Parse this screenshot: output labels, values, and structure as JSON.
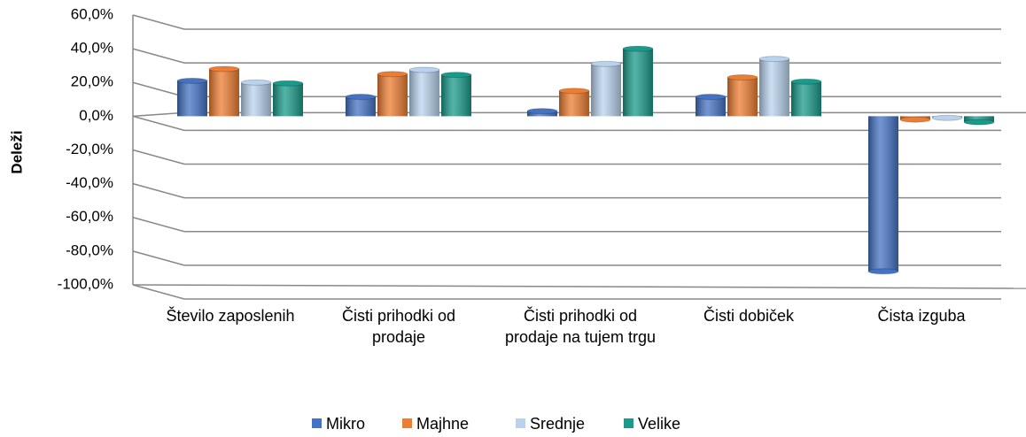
{
  "chart_data": {
    "type": "bar3d",
    "y_label": "Deleži",
    "categories": [
      "Število zaposlenih",
      "Čisti prihodki od prodaje",
      "Čisti prihodki od prodaje na tujem trgu",
      "Čisti dobiček",
      "Čista izguba"
    ],
    "series": [
      {
        "name": "Mikro",
        "color": "#4472c4",
        "values": [
          21,
          11.5,
          3,
          11.5,
          -92
        ]
      },
      {
        "name": "Majhne",
        "color": "#ed7d31",
        "values": [
          28,
          25,
          15,
          23,
          -2
        ]
      },
      {
        "name": "Srednje",
        "color": "#b9d3ee",
        "values": [
          20,
          27.5,
          31,
          34,
          -1
        ]
      },
      {
        "name": "Velike",
        "color": "#1a9a8a",
        "values": [
          19.5,
          24.5,
          40,
          20.5,
          -3.5
        ]
      }
    ],
    "ylim": [
      -100,
      60
    ],
    "yticks": [
      {
        "value": -100,
        "label": "-100,0%"
      },
      {
        "value": -80,
        "label": "-80,0%"
      },
      {
        "value": -60,
        "label": "-60,0%"
      },
      {
        "value": -40,
        "label": "-40,0%"
      },
      {
        "value": -20,
        "label": "-20,0%"
      },
      {
        "value": 0,
        "label": "0,0%"
      },
      {
        "value": 20,
        "label": "20,0%"
      },
      {
        "value": 40,
        "label": "40,0%"
      },
      {
        "value": 60,
        "label": "60,0%"
      }
    ],
    "grid": true,
    "legend": "bottom"
  }
}
